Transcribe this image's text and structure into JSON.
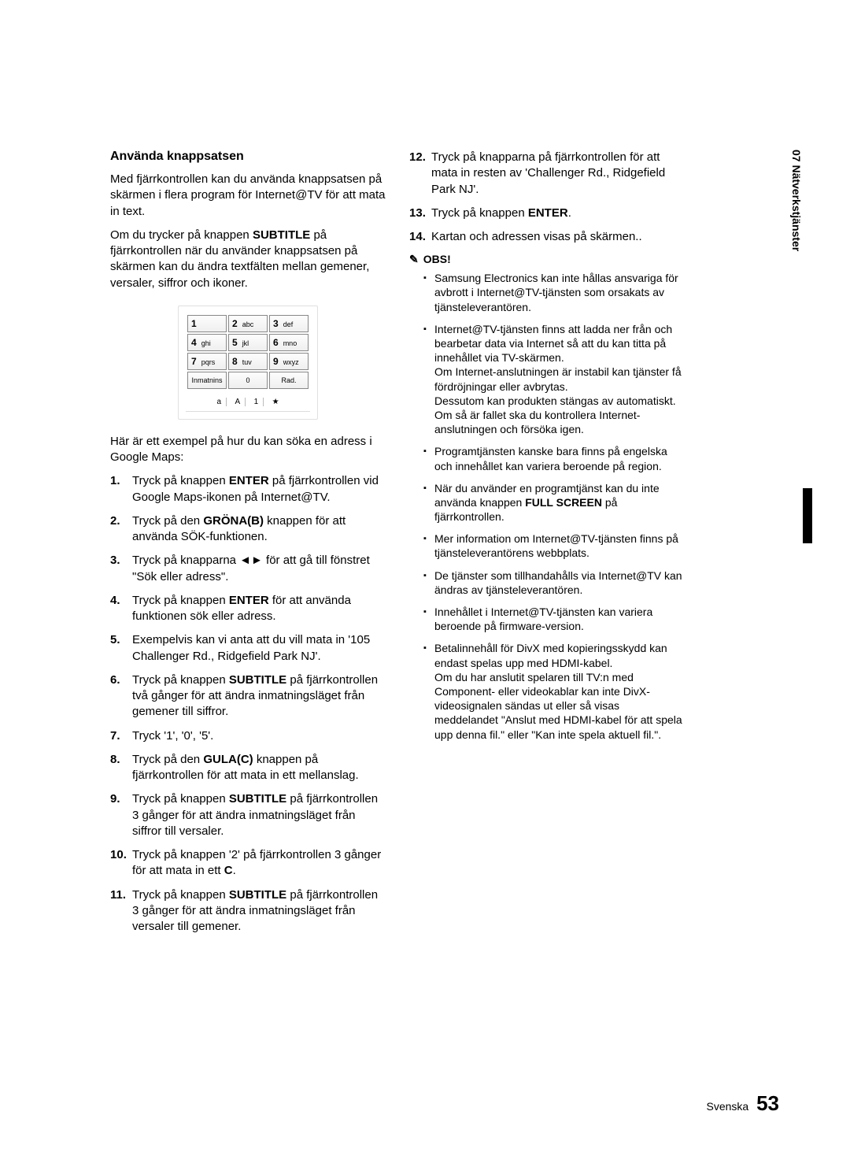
{
  "side_tab": "07   Nätverkstjänster",
  "heading": "Använda knappsatsen",
  "intro_p1": "Med fjärrkontrollen kan du använda knappsatsen på skärmen i flera program för Internet@TV för att mata in text.",
  "intro_p2_a": "Om du trycker på knappen ",
  "intro_p2_bold": "SUBTITLE",
  "intro_p2_b": " på fjärrkontrollen när du använder knappsatsen på skärmen kan du ändra textfälten mellan gemener, versaler, siffror och ikoner.",
  "keypad": {
    "rows": [
      [
        {
          "n": "1",
          "l": ""
        },
        {
          "n": "2",
          "l": "abc"
        },
        {
          "n": "3",
          "l": "def"
        }
      ],
      [
        {
          "n": "4",
          "l": "ghi"
        },
        {
          "n": "5",
          "l": "jkl"
        },
        {
          "n": "6",
          "l": "mno"
        }
      ],
      [
        {
          "n": "7",
          "l": "pqrs"
        },
        {
          "n": "8",
          "l": "tuv"
        },
        {
          "n": "9",
          "l": "wxyz"
        }
      ]
    ],
    "bottom": [
      "Inmatnins",
      "0",
      "Rad."
    ],
    "modes": [
      "a",
      "A",
      "1",
      "★"
    ]
  },
  "after_keypad": "Här är ett exempel på hur du kan söka en adress i Google Maps:",
  "steps_left": [
    {
      "pre": "Tryck på knappen ",
      "b": "ENTER",
      "post": " på fjärrkontrollen vid Google Maps-ikonen på Internet@TV."
    },
    {
      "pre": "Tryck på den ",
      "b": "GRÖNA(B)",
      "post": " knappen för att använda SÖK-funktionen."
    },
    {
      "pre": "Tryck på knapparna ◄► för att gå till fönstret \"Sök eller adress\".",
      "b": "",
      "post": ""
    },
    {
      "pre": "Tryck på knappen ",
      "b": "ENTER",
      "post": " för att använda funktionen sök eller adress."
    },
    {
      "pre": "Exempelvis kan vi anta att du vill mata in '105 Challenger Rd., Ridgefield Park NJ'.",
      "b": "",
      "post": ""
    },
    {
      "pre": "Tryck på knappen ",
      "b": "SUBTITLE",
      "post": " på fjärrkontrollen två gånger för att ändra inmatningsläget från gemener till siffror."
    },
    {
      "pre": "Tryck '1', '0', '5'.",
      "b": "",
      "post": ""
    },
    {
      "pre": "Tryck på den ",
      "b": "GULA(C)",
      "post": " knappen på fjärrkontrollen för att mata in ett mellanslag."
    },
    {
      "pre": "Tryck på knappen ",
      "b": "SUBTITLE",
      "post": " på fjärrkontrollen 3 gånger för att ändra inmatningsläget från siffror till versaler."
    },
    {
      "pre": "Tryck på knappen '2' på fjärrkontrollen 3 gånger för att mata in ett ",
      "b": "C",
      "post": "."
    },
    {
      "pre": "Tryck på knappen ",
      "b": "SUBTITLE",
      "post": " på fjärrkontrollen 3 gånger för att ändra inmatningsläget från versaler till gemener."
    }
  ],
  "steps_right": [
    {
      "pre": "Tryck på knapparna på fjärrkontrollen för att mata in resten av 'Challenger Rd., Ridgefield Park NJ'.",
      "b": "",
      "post": ""
    },
    {
      "pre": "Tryck på knappen ",
      "b": "ENTER",
      "post": "."
    },
    {
      "pre": "Kartan och adressen visas på skärmen..",
      "b": "",
      "post": ""
    }
  ],
  "obs_label": "OBS!",
  "notes": [
    "Samsung Electronics kan inte hållas ansvariga för avbrott i Internet@TV-tjänsten som orsakats av tjänsteleverantören.",
    "Internet@TV-tjänsten finns att ladda ner från och bearbetar data via Internet så att du kan titta på innehållet via TV-skärmen.\nOm Internet-anslutningen är instabil kan tjänster få fördröjningar eller avbrytas.\nDessutom kan produkten stängas av automatiskt. Om så är fallet ska du kontrollera Internet-anslutningen och försöka igen.",
    "Programtjänsten kanske bara finns på engelska och innehållet kan variera beroende på region.",
    "När du använder en programtjänst kan du inte använda knappen FULL SCREEN på fjärrkontrollen.",
    "Mer information om Internet@TV-tjänsten finns på tjänsteleverantörens webbplats.",
    "De tjänster som tillhandahålls via Internet@TV kan ändras av tjänsteleverantören.",
    "Innehållet i Internet@TV-tjänsten kan variera beroende på firmware-version.",
    "Betalinnehåll för DivX med kopieringsskydd kan endast spelas upp med HDMI-kabel.\nOm du har anslutit spelaren till TV:n med Component- eller videokablar kan inte DivX-videosignalen sändas ut eller så visas meddelandet \"Anslut med HDMI-kabel för att spela upp denna fil.\" eller \"Kan inte spela aktuell fil.\"."
  ],
  "note4_bold": "FULL SCREEN",
  "footer_label": "Svenska",
  "footer_page": "53"
}
